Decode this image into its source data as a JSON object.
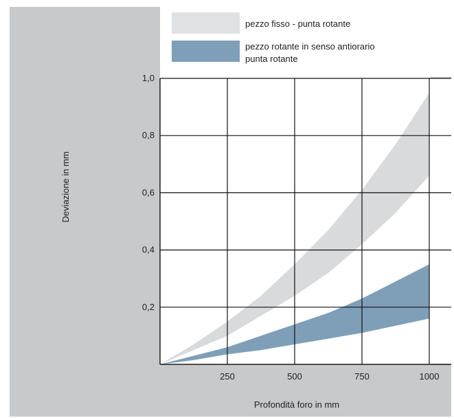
{
  "chart_data": {
    "type": "area",
    "xlabel": "Profondità foro in mm",
    "ylabel": "Deviazione in mm",
    "xlim": [
      0,
      1100
    ],
    "ylim": [
      0,
      1.0
    ],
    "x_ticks": [
      250,
      500,
      750,
      1000
    ],
    "x_tick_labels": [
      "250",
      "500",
      "750",
      "1000"
    ],
    "y_ticks": [
      0.2,
      0.4,
      0.6,
      0.8,
      1.0
    ],
    "y_tick_labels": [
      "0,2",
      "0,4",
      "0,6",
      "0,8",
      "1,0"
    ],
    "grid": true,
    "legend_position": "top",
    "series": [
      {
        "name": "pezzo fisso - punta rotante",
        "color": "#d9dadb",
        "x": [
          0,
          125,
          250,
          375,
          500,
          625,
          750,
          875,
          1000
        ],
        "upper": [
          0,
          0.07,
          0.15,
          0.24,
          0.35,
          0.47,
          0.61,
          0.77,
          0.95
        ],
        "lower": [
          0,
          0.05,
          0.1,
          0.17,
          0.24,
          0.32,
          0.42,
          0.53,
          0.66
        ]
      },
      {
        "name": "pezzo rotante in senso antiorario\npunta rotante",
        "color": "#7f9fb8",
        "x": [
          0,
          125,
          250,
          375,
          500,
          625,
          750,
          875,
          1000
        ],
        "upper": [
          0,
          0.03,
          0.06,
          0.1,
          0.14,
          0.18,
          0.23,
          0.29,
          0.35
        ],
        "lower": [
          0,
          0.015,
          0.035,
          0.05,
          0.07,
          0.09,
          0.11,
          0.135,
          0.16
        ]
      }
    ]
  }
}
